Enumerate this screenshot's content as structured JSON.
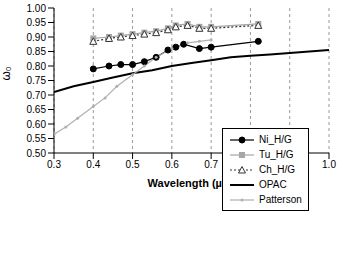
{
  "chart_data": {
    "type": "line",
    "x_label": "Wavelength (µm)",
    "y_label": "ω₀",
    "xlim": [
      0.3,
      1.0
    ],
    "xticks": [
      0.3,
      0.4,
      0.5,
      0.6,
      0.7,
      0.8,
      0.9,
      {
        "value": 1,
        "label": "1.0"
      }
    ],
    "ylim": [
      0.5,
      1.0
    ],
    "yticks": [
      {
        "value": 0.5,
        "label": "0.50"
      },
      0.55,
      {
        "value": 0.6,
        "label": "0.60"
      },
      0.65,
      {
        "value": 0.7,
        "label": "0.70"
      },
      0.75,
      {
        "value": 0.8,
        "label": "0.80"
      },
      0.85,
      {
        "value": 0.9,
        "label": "0.90"
      },
      0.95,
      {
        "value": 1,
        "label": "1.00"
      }
    ],
    "grid": true,
    "legend": "right",
    "series": [
      {
        "name": "Ni_H/G",
        "color": "#000000",
        "marker": "circle",
        "line_style": "solid",
        "x": [
          0.4,
          0.44,
          0.47,
          0.5,
          0.53,
          0.56,
          0.59,
          0.61,
          0.63,
          0.67,
          0.7,
          0.82
        ],
        "values": [
          0.79,
          0.8,
          0.805,
          0.805,
          0.815,
          0.83,
          0.855,
          0.865,
          0.875,
          0.86,
          0.865,
          0.885
        ]
      },
      {
        "name": "Tu_H/G",
        "color": "#a6a6a6",
        "marker": "square",
        "line_style": "solid",
        "x": [
          0.4,
          0.44,
          0.47,
          0.5,
          0.53,
          0.56,
          0.59,
          0.61,
          0.64,
          0.67,
          0.7,
          0.82
        ],
        "values": [
          0.895,
          0.9,
          0.905,
          0.91,
          0.915,
          0.92,
          0.93,
          0.94,
          0.945,
          0.935,
          0.935,
          0.945
        ]
      },
      {
        "name": "Ch_H/G",
        "color": "#333333",
        "marker": "triangle",
        "line_style": "dotted",
        "x": [
          0.4,
          0.44,
          0.47,
          0.5,
          0.53,
          0.56,
          0.59,
          0.61,
          0.64,
          0.67,
          0.7,
          0.82
        ],
        "values": [
          0.885,
          0.895,
          0.9,
          0.905,
          0.91,
          0.915,
          0.925,
          0.935,
          0.94,
          0.93,
          0.93,
          0.94
        ]
      },
      {
        "name": "OPAC",
        "color": "#000000",
        "marker": "none",
        "line_style": "thick",
        "x": [
          0.3,
          0.35,
          0.4,
          0.45,
          0.5,
          0.55,
          0.6,
          0.65,
          0.7,
          0.75,
          0.8,
          0.85,
          0.9,
          1.0
        ],
        "values": [
          0.71,
          0.73,
          0.745,
          0.76,
          0.775,
          0.785,
          0.8,
          0.81,
          0.82,
          0.83,
          0.835,
          0.84,
          0.845,
          0.855
        ]
      },
      {
        "name": "Patterson",
        "color": "#b0b0b0",
        "marker": "dot",
        "line_style": "solid",
        "x": [
          0.3,
          0.33,
          0.36,
          0.4,
          0.43,
          0.46,
          0.5,
          0.53,
          0.56,
          0.6,
          0.64,
          0.67,
          0.7
        ],
        "values": [
          0.565,
          0.59,
          0.62,
          0.66,
          0.69,
          0.73,
          0.77,
          0.8,
          0.83,
          0.86,
          0.88,
          0.885,
          0.89
        ]
      }
    ]
  }
}
